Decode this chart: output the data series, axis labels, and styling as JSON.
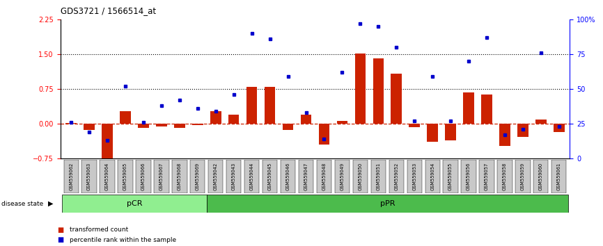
{
  "title": "GDS3721 / 1566514_at",
  "samples": [
    "GSM559062",
    "GSM559063",
    "GSM559064",
    "GSM559065",
    "GSM559066",
    "GSM559067",
    "GSM559068",
    "GSM559069",
    "GSM559042",
    "GSM559043",
    "GSM559044",
    "GSM559045",
    "GSM559046",
    "GSM559047",
    "GSM559048",
    "GSM559049",
    "GSM559050",
    "GSM559051",
    "GSM559052",
    "GSM559053",
    "GSM559054",
    "GSM559055",
    "GSM559056",
    "GSM559057",
    "GSM559058",
    "GSM559059",
    "GSM559060",
    "GSM559061"
  ],
  "transformed_count": [
    0.02,
    -0.13,
    -0.75,
    0.28,
    -0.08,
    -0.05,
    -0.08,
    -0.02,
    0.28,
    0.2,
    0.8,
    0.8,
    -0.13,
    0.2,
    -0.45,
    0.07,
    1.52,
    1.42,
    1.08,
    -0.07,
    -0.38,
    -0.35,
    0.68,
    0.63,
    -0.47,
    -0.28,
    0.1,
    -0.18
  ],
  "percentile_rank": [
    26,
    19,
    13,
    52,
    26,
    38,
    42,
    36,
    34,
    46,
    90,
    86,
    59,
    33,
    14,
    62,
    97,
    95,
    80,
    27,
    59,
    27,
    70,
    87,
    17,
    21,
    76,
    23
  ],
  "pCR_count": 8,
  "pPR_count": 20,
  "bar_color": "#cc2200",
  "dot_color": "#0000cc",
  "left_ylim": [
    -0.75,
    2.25
  ],
  "right_ylim": [
    0,
    100
  ],
  "left_yticks": [
    -0.75,
    0.0,
    0.75,
    1.5,
    2.25
  ],
  "right_yticks": [
    0,
    25,
    50,
    75,
    100
  ],
  "right_yticklabels": [
    "0",
    "25",
    "50",
    "75",
    "100%"
  ],
  "hline_y": [
    0.75,
    1.5
  ],
  "zero_line_y": 0.0,
  "bg_color": "#ffffff",
  "tick_bg_color": "#c8c8c8",
  "pCR_color": "#90ee90",
  "pPR_color": "#4cbb4c",
  "pCR_label_color": "#000000",
  "pPR_label_color": "#000000"
}
